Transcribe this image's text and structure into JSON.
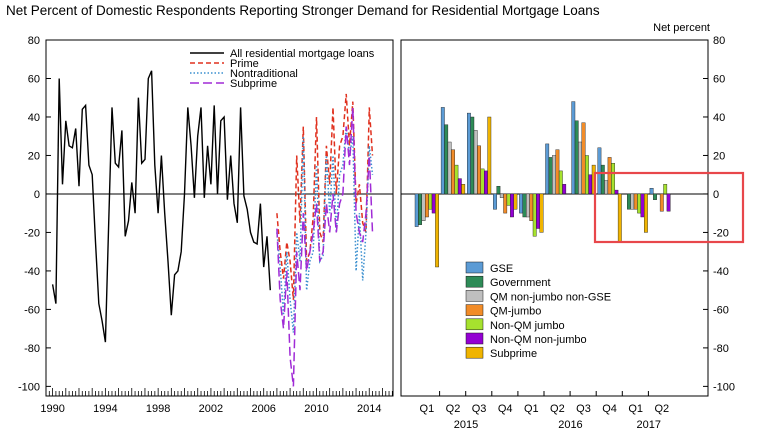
{
  "title": "Net Percent of Domestic Respondents Reporting Stronger Demand for Residential Mortgage Loans",
  "colors": {
    "all": "#000000",
    "prime": "#e0301e",
    "nontraditional": "#3a8fcf",
    "subprime": "#a02bd6",
    "GSE": "#5b9bd5",
    "Government": "#2e8b57",
    "QM non-jumbo non-GSE": "#bfbfbf",
    "QM-jumbo": "#f28c28",
    "Non-QM jumbo": "#a6e22e",
    "Non-QM non-jumbo": "#9400d3",
    "Subprime": "#f0b400",
    "highlight": "#e8474b"
  },
  "chart_data": [
    {
      "type": "line",
      "ylim": [
        -105,
        80
      ],
      "yticks": [
        80,
        60,
        40,
        20,
        0,
        -20,
        -40,
        -60,
        -80,
        -100
      ],
      "xlim": [
        1989.5,
        2015.8
      ],
      "xticks": [
        "1990",
        "1994",
        "1998",
        "2002",
        "2006",
        "2010",
        "2014"
      ],
      "legend": "top-right",
      "series": [
        {
          "key": "all",
          "name": "All residential mortgage loans",
          "style": "solid",
          "x": [
            1990.0,
            1990.25,
            1990.5,
            1990.75,
            1991.0,
            1991.25,
            1991.5,
            1991.75,
            1992.0,
            1992.25,
            1992.5,
            1992.75,
            1993.0,
            1993.25,
            1993.5,
            1993.75,
            1994.0,
            1994.25,
            1994.5,
            1994.75,
            1995.0,
            1995.25,
            1995.5,
            1995.75,
            1996.0,
            1996.25,
            1996.5,
            1996.75,
            1997.0,
            1997.25,
            1997.5,
            1997.75,
            1998.0,
            1998.25,
            1998.5,
            1998.75,
            1999.0,
            1999.25,
            1999.5,
            1999.75,
            2000.0,
            2000.25,
            2000.5,
            2000.75,
            2001.0,
            2001.25,
            2001.5,
            2001.75,
            2002.0,
            2002.25,
            2002.5,
            2002.75,
            2003.0,
            2003.25,
            2003.5,
            2003.75,
            2004.0,
            2004.25,
            2004.5,
            2004.75,
            2005.0,
            2005.25,
            2005.5,
            2005.75,
            2006.0,
            2006.25,
            2006.5
          ],
          "y": [
            -47,
            -57,
            60,
            5,
            38,
            25,
            24,
            34,
            4,
            44,
            46,
            15,
            10,
            -25,
            -57,
            -66,
            -77,
            -15,
            45,
            16,
            14,
            33,
            -22,
            -14,
            6,
            -10,
            50,
            16,
            18,
            60,
            64,
            15,
            -10,
            20,
            -10,
            -35,
            -63,
            -42,
            -40,
            -30,
            0,
            45,
            25,
            -2,
            30,
            45,
            -2,
            25,
            5,
            46,
            0,
            38,
            40,
            -3,
            20,
            -5,
            -15,
            45,
            -1,
            -8,
            -20,
            -25,
            -26,
            -5,
            -38,
            -22,
            -50
          ]
        },
        {
          "key": "prime",
          "name": "Prime",
          "style": "dashed",
          "x": [
            2007.0,
            2007.25,
            2007.5,
            2007.75,
            2008.0,
            2008.25,
            2008.5,
            2008.75,
            2009.0,
            2009.25,
            2009.5,
            2009.75,
            2010.0,
            2010.25,
            2010.5,
            2010.75,
            2011.0,
            2011.25,
            2011.5,
            2011.75,
            2012.0,
            2012.25,
            2012.5,
            2012.75,
            2013.0,
            2013.25,
            2013.5,
            2013.75,
            2014.0,
            2014.25
          ],
          "y": [
            -10,
            -30,
            -44,
            -25,
            -35,
            -55,
            20,
            -15,
            35,
            -35,
            -30,
            -12,
            40,
            -20,
            -25,
            25,
            5,
            45,
            0,
            25,
            30,
            52,
            25,
            48,
            -5,
            5,
            -15,
            -20,
            45,
            20
          ]
        },
        {
          "key": "nontraditional",
          "name": "Nontraditional",
          "style": "dotted",
          "x": [
            2007.0,
            2007.25,
            2007.5,
            2007.75,
            2008.0,
            2008.25,
            2008.5,
            2008.75,
            2009.0,
            2009.25,
            2009.5,
            2009.75,
            2010.0,
            2010.25,
            2010.5,
            2010.75,
            2011.0,
            2011.25,
            2011.5,
            2011.75,
            2012.0,
            2012.25,
            2012.5,
            2012.75,
            2013.0,
            2013.25,
            2013.5,
            2013.75,
            2014.0,
            2014.25
          ],
          "y": [
            -20,
            -38,
            -63,
            -30,
            -55,
            -72,
            -20,
            -35,
            30,
            -50,
            -35,
            -30,
            15,
            -35,
            -32,
            20,
            -10,
            20,
            -20,
            10,
            15,
            35,
            20,
            30,
            -40,
            -10,
            -45,
            -20,
            25,
            10
          ]
        },
        {
          "key": "subprime",
          "name": "Subprime",
          "style": "longdash",
          "x": [
            2007.0,
            2007.25,
            2007.5,
            2007.75,
            2008.0,
            2008.25,
            2008.5,
            2008.75,
            2009.0,
            2009.25,
            2009.5,
            2009.75,
            2010.0,
            2010.25,
            2010.5,
            2010.75,
            2011.0,
            2011.25,
            2011.5,
            2011.75,
            2012.0,
            2012.25,
            2012.5,
            2012.75,
            2013.0,
            2013.25,
            2013.5,
            2013.75,
            2014.0,
            2014.25
          ],
          "y": [
            -18,
            -55,
            -70,
            -40,
            -85,
            -100,
            -30,
            -50,
            -10,
            -40,
            -30,
            -20,
            -5,
            -35,
            -30,
            -5,
            -20,
            0,
            -20,
            -5,
            0,
            35,
            15,
            45,
            -10,
            -20,
            -25,
            -10,
            20,
            -20
          ]
        }
      ]
    },
    {
      "type": "bar",
      "ylim": [
        -105,
        80
      ],
      "ylabel": "Net percent",
      "yticks": [
        80,
        60,
        40,
        20,
        0,
        -20,
        -40,
        -60,
        -80,
        -100
      ],
      "categories": [
        "Q1",
        "Q2",
        "Q3",
        "Q4",
        "Q1",
        "Q2",
        "Q3",
        "Q4",
        "Q1",
        "Q2"
      ],
      "years": [
        {
          "label": "2015",
          "from": 0,
          "to": 3
        },
        {
          "label": "2016",
          "from": 4,
          "to": 7
        },
        {
          "label": "2017",
          "from": 8,
          "to": 9
        }
      ],
      "legend": "bottom-left",
      "series": [
        {
          "name": "GSE",
          "values": [
            -17,
            45,
            42,
            -8,
            -10,
            26,
            48,
            24,
            0,
            3
          ]
        },
        {
          "name": "Government",
          "values": [
            -16,
            36,
            40,
            4,
            -12,
            19,
            38,
            15,
            -8,
            -3
          ]
        },
        {
          "name": "QM non-jumbo non-GSE",
          "values": [
            -14,
            27,
            33,
            -2,
            -12,
            20,
            27,
            7,
            -8,
            0
          ]
        },
        {
          "name": "QM-jumbo",
          "values": [
            -12,
            23,
            25,
            -10,
            -14,
            23,
            37,
            19,
            -8,
            -9
          ]
        },
        {
          "name": "Non-QM jumbo",
          "values": [
            -8,
            15,
            13,
            -6,
            -22,
            12,
            20,
            16,
            -10,
            5
          ]
        },
        {
          "name": "Non-QM non-jumbo",
          "values": [
            -10,
            8,
            12,
            -12,
            -18,
            5,
            10,
            2,
            -12,
            -9
          ]
        },
        {
          "name": "Subprime",
          "values": [
            -38,
            5,
            40,
            -8,
            -20,
            0,
            15,
            -25,
            -20,
            0
          ]
        }
      ]
    }
  ]
}
